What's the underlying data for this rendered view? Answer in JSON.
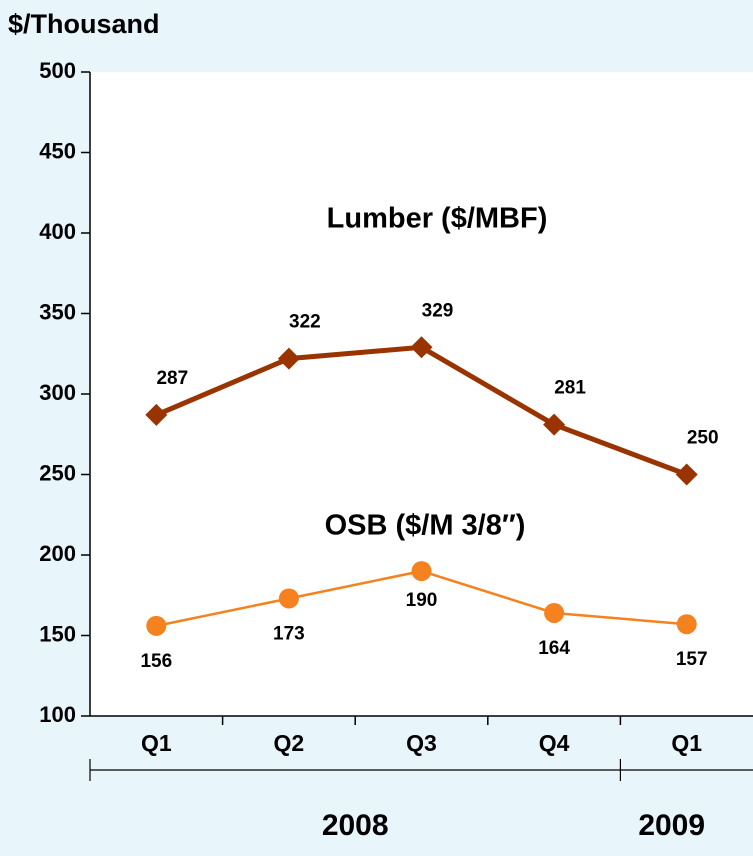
{
  "chart_data": {
    "type": "line",
    "y_axis_title": "$/Thousand",
    "groups": [
      {
        "label": "2008",
        "categories": [
          "Q1",
          "Q2",
          "Q3",
          "Q4"
        ]
      },
      {
        "label": "2009",
        "categories": [
          "Q1"
        ]
      }
    ],
    "series": [
      {
        "name": "Lumber ($/MBF)",
        "color": "#993300",
        "marker": "diamond",
        "values": [
          287,
          322,
          329,
          281,
          250
        ]
      },
      {
        "name": "OSB ($/M 3/8″)",
        "color": "#f5821f",
        "marker": "circle",
        "values": [
          156,
          173,
          190,
          164,
          157
        ]
      }
    ],
    "ylim": [
      100,
      500
    ],
    "yticks": [
      100,
      150,
      200,
      250,
      300,
      350,
      400,
      450,
      500
    ],
    "grid": false
  }
}
